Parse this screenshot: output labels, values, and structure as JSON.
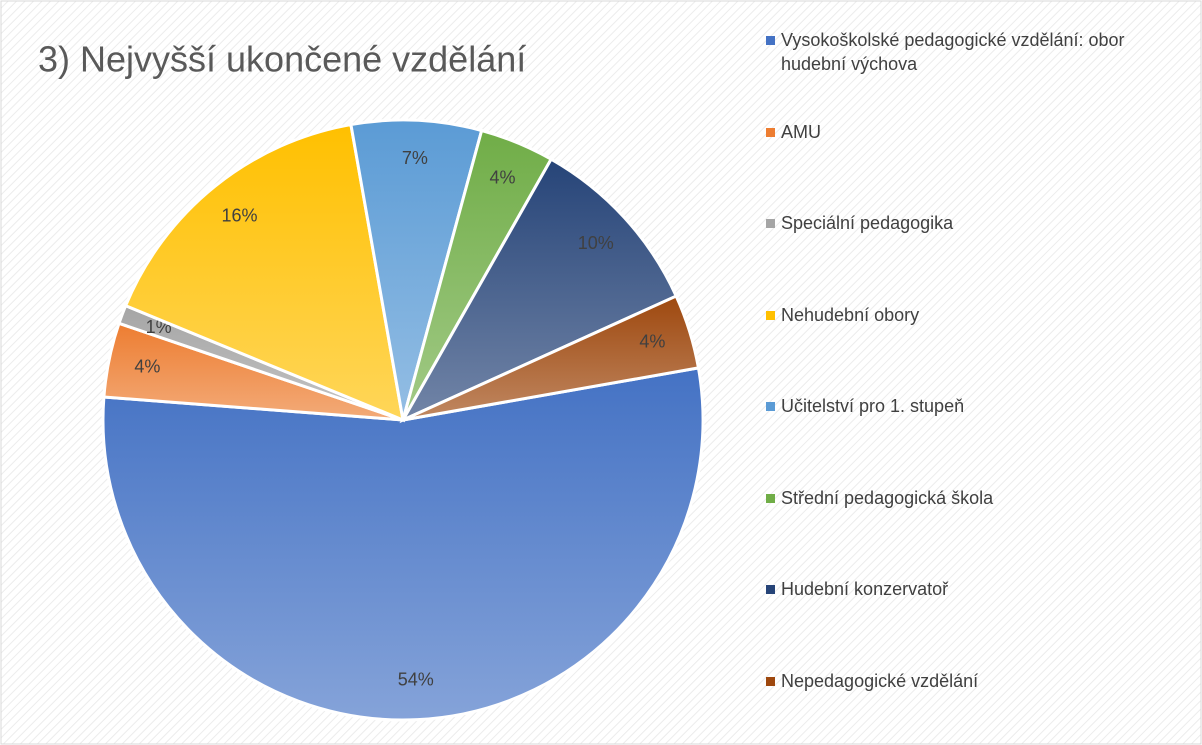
{
  "chart_data": {
    "type": "pie",
    "title": "3) Nejvyšší ukončené vzdělání",
    "categories": [
      "Vysokoškolské pedagogické vzdělání: obor hudební výchova",
      "AMU",
      "Speciální pedagogika",
      "Nehudební obory",
      "Učitelství pro 1. stupeň",
      "Střední pedagogická škola",
      "Hudební konzervatoř",
      "Nepedagogické vzdělání"
    ],
    "values": [
      54,
      4,
      1,
      16,
      7,
      4,
      10,
      4
    ],
    "value_labels": [
      "54%",
      "4%",
      "1%",
      "16%",
      "7%",
      "4%",
      "10%",
      "4%"
    ],
    "colors": [
      "#4472c4",
      "#ed7d31",
      "#a5a5a5",
      "#ffc000",
      "#5b9bd5",
      "#70ad47",
      "#264478",
      "#9e480e"
    ],
    "legend": "right"
  }
}
